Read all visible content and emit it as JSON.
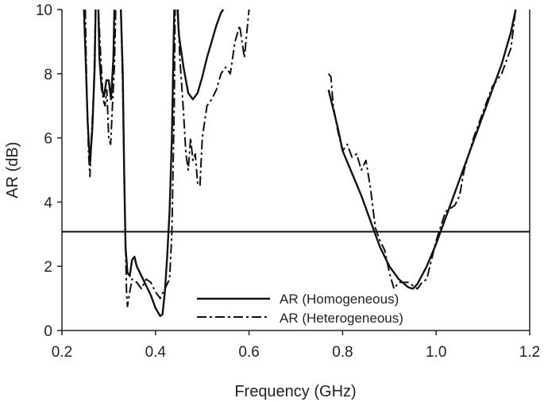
{
  "chart_data": {
    "type": "line",
    "xlabel": "Frequency (GHz)",
    "ylabel": "AR (dB)",
    "xlim": [
      0.2,
      1.2
    ],
    "ylim": [
      0,
      10
    ],
    "xticks": [
      "0.2",
      "0.4",
      "0.6",
      "0.8",
      "1.0",
      "1.2"
    ],
    "yticks": [
      "0",
      "2",
      "4",
      "6",
      "8",
      "10"
    ],
    "grid": false,
    "legend_position": "bottom-center",
    "reference_line": {
      "y": 3.08
    },
    "series": [
      {
        "name": "AR (Homogeneous)",
        "style": "solid",
        "color": "#111111",
        "segments": [
          [
            [
              0.247,
              10
            ],
            [
              0.25,
              8.8
            ],
            [
              0.255,
              6.5
            ],
            [
              0.26,
              5.2
            ],
            [
              0.265,
              6.3
            ],
            [
              0.27,
              8.2
            ],
            [
              0.272,
              10
            ]
          ],
          [
            [
              0.278,
              10
            ],
            [
              0.28,
              8.5
            ],
            [
              0.285,
              7.5
            ],
            [
              0.29,
              7.3
            ],
            [
              0.295,
              7.8
            ],
            [
              0.3,
              7.8
            ],
            [
              0.305,
              7.2
            ],
            [
              0.31,
              8.5
            ],
            [
              0.312,
              10
            ]
          ],
          [
            [
              0.326,
              10
            ],
            [
              0.33,
              8
            ],
            [
              0.333,
              5
            ],
            [
              0.336,
              2.6
            ],
            [
              0.34,
              1.8
            ],
            [
              0.345,
              1.7
            ],
            [
              0.35,
              2.2
            ],
            [
              0.355,
              2.3
            ],
            [
              0.36,
              2.0
            ],
            [
              0.37,
              1.7
            ],
            [
              0.38,
              1.4
            ],
            [
              0.39,
              1.1
            ],
            [
              0.4,
              0.7
            ],
            [
              0.41,
              0.45
            ],
            [
              0.415,
              0.5
            ],
            [
              0.42,
              1.2
            ],
            [
              0.425,
              2.3
            ],
            [
              0.43,
              3.7
            ],
            [
              0.435,
              6.0
            ],
            [
              0.44,
              10
            ]
          ],
          [
            [
              0.447,
              10
            ],
            [
              0.45,
              9.2
            ],
            [
              0.46,
              8.2
            ],
            [
              0.47,
              7.4
            ],
            [
              0.48,
              7.2
            ],
            [
              0.49,
              7.4
            ],
            [
              0.5,
              7.9
            ],
            [
              0.51,
              8.5
            ],
            [
              0.52,
              9.0
            ],
            [
              0.53,
              9.5
            ],
            [
              0.54,
              9.9
            ],
            [
              0.545,
              10
            ]
          ],
          [
            [
              0.77,
              7.5
            ],
            [
              0.78,
              6.9
            ],
            [
              0.79,
              6.3
            ],
            [
              0.8,
              5.6
            ],
            [
              0.82,
              4.9
            ],
            [
              0.84,
              4.2
            ],
            [
              0.86,
              3.4
            ],
            [
              0.87,
              3.0
            ],
            [
              0.88,
              2.6
            ],
            [
              0.9,
              2.0
            ],
            [
              0.92,
              1.6
            ],
            [
              0.94,
              1.35
            ],
            [
              0.95,
              1.3
            ],
            [
              0.96,
              1.45
            ],
            [
              0.98,
              2.0
            ],
            [
              1.0,
              2.7
            ],
            [
              1.02,
              3.5
            ],
            [
              1.04,
              4.3
            ],
            [
              1.06,
              5.1
            ],
            [
              1.08,
              5.9
            ],
            [
              1.1,
              6.7
            ],
            [
              1.12,
              7.5
            ],
            [
              1.14,
              8.3
            ],
            [
              1.16,
              9.3
            ],
            [
              1.17,
              10
            ]
          ]
        ]
      },
      {
        "name": "AR (Heterogeneous)",
        "style": "dash-dot",
        "color": "#111111",
        "segments": [
          [
            [
              0.25,
              10
            ],
            [
              0.253,
              7.5
            ],
            [
              0.257,
              5.5
            ],
            [
              0.26,
              4.8
            ],
            [
              0.263,
              6.0
            ],
            [
              0.268,
              7.5
            ],
            [
              0.272,
              10
            ]
          ],
          [
            [
              0.278,
              10
            ],
            [
              0.283,
              8.5
            ],
            [
              0.288,
              7.2
            ],
            [
              0.292,
              7.0
            ],
            [
              0.296,
              7.5
            ],
            [
              0.3,
              6.0
            ],
            [
              0.304,
              5.8
            ],
            [
              0.308,
              7.0
            ],
            [
              0.312,
              8.2
            ],
            [
              0.315,
              10
            ]
          ],
          [
            [
              0.326,
              10
            ],
            [
              0.33,
              7.5
            ],
            [
              0.335,
              3.5
            ],
            [
              0.338,
              1.2
            ],
            [
              0.34,
              0.75
            ],
            [
              0.345,
              1.2
            ],
            [
              0.35,
              1.6
            ],
            [
              0.36,
              1.5
            ],
            [
              0.37,
              1.3
            ],
            [
              0.38,
              1.6
            ],
            [
              0.39,
              1.5
            ],
            [
              0.4,
              1.2
            ],
            [
              0.41,
              1.0
            ],
            [
              0.42,
              1.3
            ],
            [
              0.43,
              1.6
            ],
            [
              0.435,
              3.0
            ],
            [
              0.44,
              7.0
            ],
            [
              0.442,
              10
            ]
          ],
          [
            [
              0.448,
              10
            ],
            [
              0.452,
              8.5
            ],
            [
              0.46,
              6.8
            ],
            [
              0.465,
              5.5
            ],
            [
              0.47,
              5.0
            ],
            [
              0.475,
              6.0
            ],
            [
              0.48,
              5.3
            ],
            [
              0.485,
              5.5
            ],
            [
              0.49,
              4.6
            ],
            [
              0.495,
              4.5
            ],
            [
              0.5,
              6.0
            ],
            [
              0.51,
              7.0
            ],
            [
              0.52,
              7.2
            ],
            [
              0.53,
              7.5
            ],
            [
              0.54,
              8.0
            ],
            [
              0.55,
              8.2
            ],
            [
              0.56,
              8.0
            ],
            [
              0.57,
              9.0
            ],
            [
              0.58,
              9.5
            ],
            [
              0.59,
              8.5
            ],
            [
              0.6,
              10
            ]
          ],
          [
            [
              0.77,
              8.0
            ],
            [
              0.775,
              7.9
            ],
            [
              0.78,
              7.0
            ],
            [
              0.79,
              6.2
            ],
            [
              0.8,
              5.6
            ],
            [
              0.81,
              5.8
            ],
            [
              0.82,
              5.4
            ],
            [
              0.83,
              5.5
            ],
            [
              0.84,
              5.0
            ],
            [
              0.85,
              5.3
            ],
            [
              0.86,
              4.4
            ],
            [
              0.87,
              3.2
            ],
            [
              0.88,
              2.8
            ],
            [
              0.89,
              2.5
            ],
            [
              0.9,
              1.8
            ],
            [
              0.91,
              1.3
            ],
            [
              0.92,
              1.5
            ],
            [
              0.94,
              1.5
            ],
            [
              0.96,
              1.3
            ],
            [
              0.97,
              1.5
            ],
            [
              0.98,
              1.6
            ],
            [
              1.0,
              2.8
            ],
            [
              1.02,
              3.7
            ],
            [
              1.04,
              3.9
            ],
            [
              1.05,
              4.2
            ],
            [
              1.06,
              5.0
            ],
            [
              1.08,
              6.0
            ],
            [
              1.1,
              6.8
            ],
            [
              1.12,
              7.6
            ],
            [
              1.14,
              8.0
            ],
            [
              1.16,
              8.8
            ],
            [
              1.17,
              10
            ]
          ]
        ]
      }
    ]
  }
}
